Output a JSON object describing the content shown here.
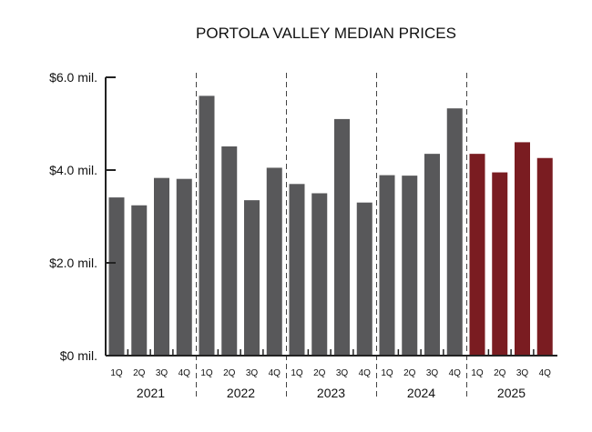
{
  "chart_data": {
    "type": "bar",
    "title": "PORTOLA VALLEY MEDIAN PRICES",
    "xlabel": "",
    "ylabel": "",
    "ylim": [
      0,
      6
    ],
    "yticks": [
      {
        "value": 0,
        "label": "$0 mil."
      },
      {
        "value": 2,
        "label": "$2.0 mil."
      },
      {
        "value": 4,
        "label": "$4.0 mil."
      },
      {
        "value": 6,
        "label": "$6.0 mil."
      }
    ],
    "grid": false,
    "legend": "none",
    "quarters": [
      "1Q",
      "2Q",
      "3Q",
      "4Q"
    ],
    "groups": [
      {
        "year": "2021",
        "values": [
          3.41,
          3.24,
          3.83,
          3.81
        ],
        "color": "#58585a"
      },
      {
        "year": "2022",
        "values": [
          5.6,
          4.51,
          3.35,
          4.05
        ],
        "color": "#58585a"
      },
      {
        "year": "2023",
        "values": [
          3.7,
          3.5,
          5.1,
          3.3
        ],
        "color": "#58585a"
      },
      {
        "year": "2024",
        "values": [
          3.89,
          3.88,
          4.35,
          5.33
        ],
        "color": "#58585a"
      },
      {
        "year": "2025",
        "values": [
          4.35,
          3.95,
          4.6,
          4.26
        ],
        "color": "#7a1c21"
      }
    ]
  }
}
